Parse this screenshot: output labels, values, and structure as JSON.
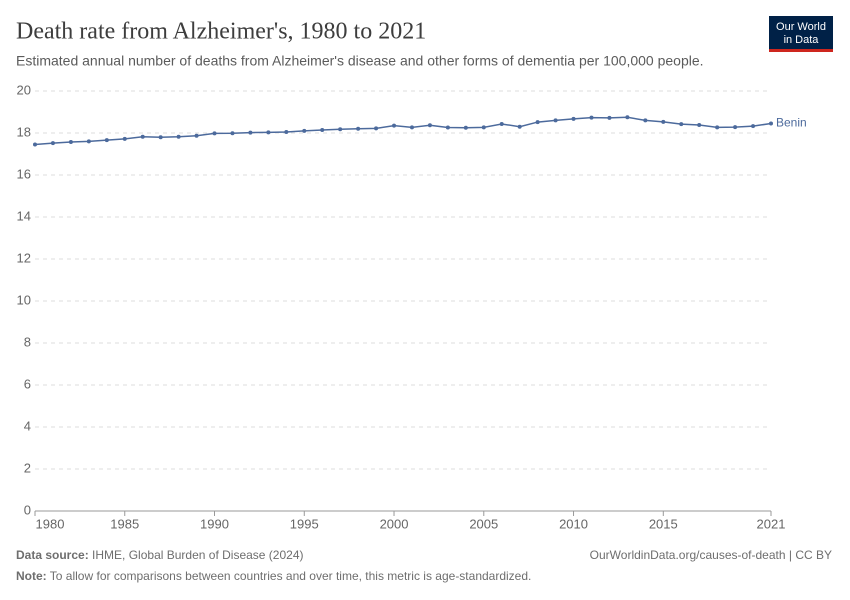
{
  "chart_data": {
    "type": "line",
    "title": "Death rate from Alzheimer's, 1980 to 2021",
    "subtitle": "Estimated annual number of deaths from Alzheimer's disease and other forms of dementia per 100,000 people.",
    "x": [
      1980,
      1981,
      1982,
      1983,
      1984,
      1985,
      1986,
      1987,
      1988,
      1989,
      1990,
      1991,
      1992,
      1993,
      1994,
      1995,
      1996,
      1997,
      1998,
      1999,
      2000,
      2001,
      2002,
      2003,
      2004,
      2005,
      2006,
      2007,
      2008,
      2009,
      2010,
      2011,
      2012,
      2013,
      2014,
      2015,
      2016,
      2017,
      2018,
      2019,
      2020,
      2021
    ],
    "series": [
      {
        "name": "Benin",
        "color": "#4c6a9c",
        "values": [
          17.45,
          17.52,
          17.57,
          17.6,
          17.66,
          17.72,
          17.82,
          17.8,
          17.82,
          17.87,
          17.98,
          17.99,
          18.02,
          18.03,
          18.05,
          18.1,
          18.14,
          18.18,
          18.2,
          18.22,
          18.35,
          18.27,
          18.37,
          18.26,
          18.25,
          18.27,
          18.43,
          18.3,
          18.52,
          18.6,
          18.67,
          18.73,
          18.72,
          18.75,
          18.6,
          18.53,
          18.42,
          18.38,
          18.27,
          18.28,
          18.33,
          18.45
        ]
      }
    ],
    "xlim": [
      1980,
      2021
    ],
    "xticks": [
      1980,
      1985,
      1990,
      1995,
      2000,
      2005,
      2010,
      2015,
      2021
    ],
    "ylim": [
      0,
      20
    ],
    "yticks": [
      0,
      2,
      4,
      6,
      8,
      10,
      12,
      14,
      16,
      18,
      20
    ],
    "grid": true
  },
  "logo": [
    "Our World",
    "in Data"
  ],
  "footer": {
    "source_label": "Data source:",
    "source": "IHME, Global Burden of Disease (2024)",
    "url": "OurWorldinData.org/causes-of-death | CC BY",
    "note_label": "Note:",
    "note": "To allow for comparisons between countries and over time, this metric is age-standardized."
  }
}
